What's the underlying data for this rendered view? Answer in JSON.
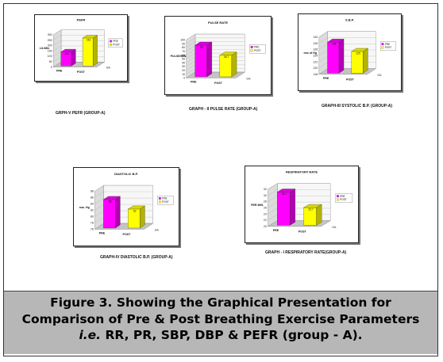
{
  "caption": {
    "line1": "Figure 3. Showing the Graphical Presentation for",
    "line2": "Comparison of Pre & Post Breathing Exercise Parameters",
    "line3_italic": "i.e.",
    "line3_rest": " RR, PR, SBP, DBP & PEFR (group - A)."
  },
  "chart_data": [
    {
      "type": "bar",
      "title": "PEFR",
      "ylabel": "Lit./Min",
      "categories": [
        "PRE",
        "POST"
      ],
      "legend": [
        "PRE",
        "POST"
      ],
      "series": [
        {
          "values": [
            131,
            261
          ]
        }
      ],
      "value_labels": [
        "131",
        "261"
      ],
      "yticks": [
        "0",
        "50",
        "100",
        "150",
        "200",
        "250",
        "300"
      ],
      "ylim": [
        0,
        300
      ],
      "depth_label": "GA",
      "subcaption": "GRPH-V PEFR (GROUP-A)",
      "colors": {
        "pre": "#ff00ff",
        "post": "#ffff00"
      }
    },
    {
      "type": "bar",
      "title": "PULSE RATE",
      "ylabel": "PULSE/MIN.",
      "categories": [
        "PRE",
        "POST"
      ],
      "legend": [
        "PRE",
        "POST"
      ],
      "series": [
        {
          "values": [
            83,
            56.7
          ]
        }
      ],
      "value_labels": [
        "83",
        "56.7"
      ],
      "yticks": [
        "0",
        "10",
        "20",
        "30",
        "40",
        "50",
        "60",
        "70",
        "80",
        "90",
        "100"
      ],
      "ylim": [
        0,
        100
      ],
      "depth_label": "GA",
      "subcaption": "GRAPH - II PULSE RATE (GROUP-A)",
      "colors": {
        "pre": "#ff00ff",
        "post": "#ffff00"
      }
    },
    {
      "type": "bar",
      "title": "S.B.P.",
      "ylabel": "mm of Hg",
      "categories": [
        "PRE",
        "POST"
      ],
      "legend": [
        "PRE",
        "POST"
      ],
      "series": [
        {
          "values": [
            128,
            125
          ]
        }
      ],
      "value_labels": [
        "128",
        "125"
      ],
      "yticks": [
        "118",
        "120",
        "122",
        "124",
        "126",
        "128",
        "130"
      ],
      "ylim": [
        118,
        130
      ],
      "depth_label": "GA",
      "subcaption": "GRAPH-III SYSTOLIC B.P. (GROUP-A)",
      "colors": {
        "pre": "#ff00ff",
        "post": "#ffff00"
      }
    },
    {
      "type": "bar",
      "title": "DIASTOLIC B.P.",
      "ylabel": "mm. Hg",
      "categories": [
        "PRE",
        "POST"
      ],
      "legend": [
        "PRE",
        "POST"
      ],
      "series": [
        {
          "values": [
            85,
            82
          ]
        }
      ],
      "value_labels": [
        "85",
        "82"
      ],
      "yticks": [
        "76",
        "78",
        "80",
        "82",
        "84",
        "86",
        "88"
      ],
      "ylim": [
        76,
        88
      ],
      "depth_label": "GA",
      "subcaption": "GRAPH-IV DIASTOLIC B.P. (GROUP-A)",
      "colors": {
        "pre": "#ff00ff",
        "post": "#ffff00"
      }
    },
    {
      "type": "bar",
      "title": "RESPIRATORY RATE",
      "ylabel": "PER MIN.",
      "categories": [
        "PRE",
        "POST"
      ],
      "legend": [
        "PRE",
        "POST"
      ],
      "series": [
        {
          "values": [
            30.7,
            25.7
          ]
        }
      ],
      "value_labels": [
        "30.7",
        "25.7"
      ],
      "yticks": [
        "20",
        "22",
        "24",
        "26",
        "28",
        "30",
        "32"
      ],
      "ylim": [
        20,
        32
      ],
      "depth_label": "GA",
      "subcaption": "GRAPH - I RESPIRATORY RATE(GROUP-A)",
      "colors": {
        "pre": "#ff00ff",
        "post": "#ffff00"
      }
    }
  ]
}
